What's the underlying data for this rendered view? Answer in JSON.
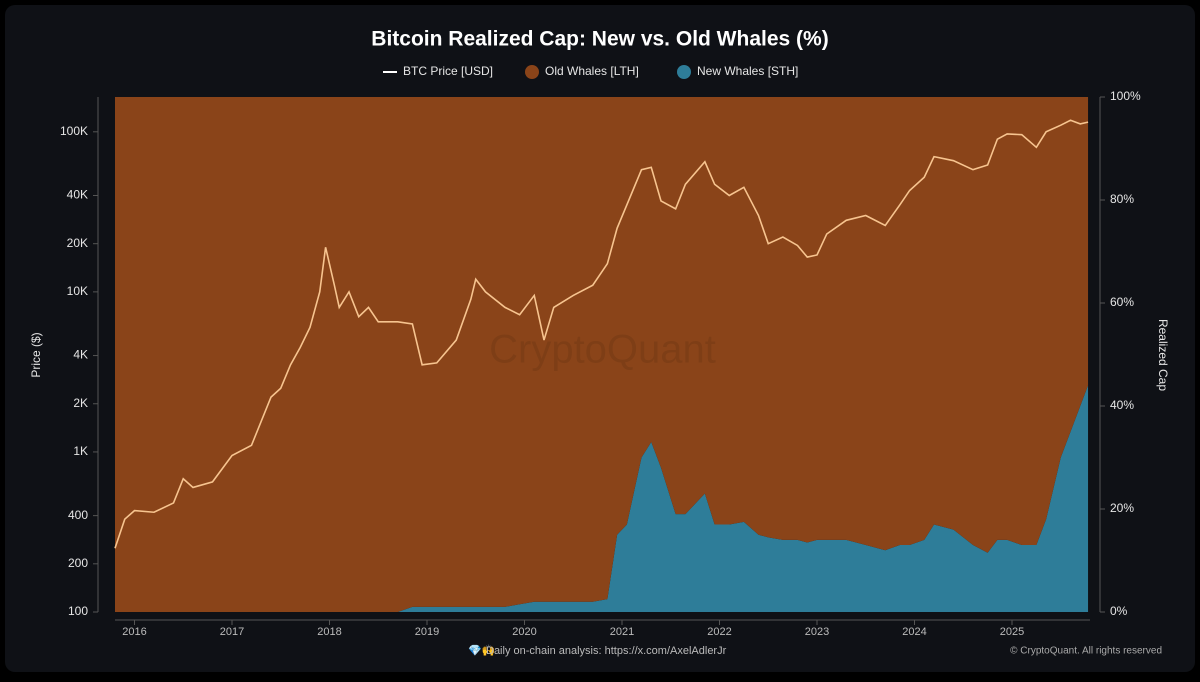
{
  "chart_data": {
    "type": "line-area",
    "title": "Bitcoin Realized Cap: New vs. Old Whales (%)",
    "ylabel": "Price ($)",
    "y2label": "Realized Cap",
    "watermark": "CryptoQuant",
    "footnote": "Daily on-chain analysis: https://x.com/AxelAdlerJr",
    "credit": "© CryptoQuant. All rights reserved",
    "yscale": "log",
    "legend": "top",
    "x": [
      2015.8,
      2015.9,
      2016.0,
      2016.2,
      2016.4,
      2016.5,
      2016.6,
      2016.8,
      2017.0,
      2017.2,
      2017.4,
      2017.5,
      2017.6,
      2017.7,
      2017.8,
      2017.9,
      2017.96,
      2018.05,
      2018.1,
      2018.2,
      2018.3,
      2018.4,
      2018.5,
      2018.7,
      2018.85,
      2018.95,
      2019.1,
      2019.3,
      2019.45,
      2019.5,
      2019.6,
      2019.8,
      2019.95,
      2020.1,
      2020.2,
      2020.3,
      2020.5,
      2020.7,
      2020.85,
      2020.95,
      2021.05,
      2021.2,
      2021.3,
      2021.4,
      2021.55,
      2021.65,
      2021.85,
      2021.95,
      2022.1,
      2022.25,
      2022.4,
      2022.5,
      2022.65,
      2022.8,
      2022.9,
      2023.0,
      2023.1,
      2023.3,
      2023.5,
      2023.7,
      2023.85,
      2023.95,
      2024.1,
      2024.2,
      2024.4,
      2024.6,
      2024.75,
      2024.85,
      2024.95,
      2025.1,
      2025.25,
      2025.35,
      2025.5,
      2025.6,
      2025.7,
      2025.78
    ],
    "xlim": [
      2015.8,
      2025.8
    ],
    "xticks": [
      2016,
      2017,
      2018,
      2019,
      2020,
      2021,
      2022,
      2023,
      2024,
      2025
    ],
    "ylim": [
      100,
      165000
    ],
    "yticks": [
      100,
      200,
      400,
      {
        "value": 1000,
        "label": "1K"
      },
      {
        "value": 2000,
        "label": "2K"
      },
      {
        "value": 4000,
        "label": "4K"
      },
      {
        "value": 10000,
        "label": "10K"
      },
      {
        "value": 20000,
        "label": "20K"
      },
      {
        "value": 40000,
        "label": "40K"
      },
      {
        "value": 100000,
        "label": "100K"
      }
    ],
    "y2lim": [
      0,
      100
    ],
    "y2ticks": [
      {
        "value": 0,
        "label": "0%"
      },
      {
        "value": 20,
        "label": "20%"
      },
      {
        "value": 40,
        "label": "40%"
      },
      {
        "value": 60,
        "label": "60%"
      },
      {
        "value": 80,
        "label": "80%"
      },
      {
        "value": 100,
        "label": "100%"
      }
    ],
    "series": [
      {
        "name": "BTC Price [USD]",
        "color": "#f7c48f",
        "kind": "line",
        "values": [
          250,
          380,
          430,
          420,
          480,
          680,
          600,
          650,
          950,
          1100,
          2200,
          2500,
          3500,
          4500,
          6000,
          10000,
          19000,
          11000,
          8000,
          10000,
          7000,
          8000,
          6500,
          6500,
          6300,
          3500,
          3600,
          5000,
          9000,
          12000,
          10000,
          8000,
          7200,
          9500,
          5000,
          8000,
          9500,
          11000,
          15000,
          25000,
          35000,
          58000,
          60000,
          37000,
          33000,
          47000,
          65000,
          47000,
          40000,
          45000,
          30000,
          20000,
          22000,
          19500,
          16500,
          17000,
          23000,
          28000,
          30000,
          26000,
          35000,
          43000,
          52000,
          70000,
          66000,
          58000,
          62000,
          90000,
          97000,
          96000,
          80000,
          100000,
          110000,
          118000,
          112000,
          115000
        ]
      },
      {
        "name": "Old Whales [LTH]",
        "color": "#8a4419",
        "kind": "area",
        "axis": "y2",
        "values": [
          100,
          100,
          100,
          100,
          100,
          100,
          100,
          100,
          100,
          100,
          100,
          100,
          100,
          100,
          100,
          100,
          100,
          100,
          100,
          100,
          100,
          100,
          100,
          100,
          99,
          99,
          99,
          99,
          99,
          99,
          99,
          99,
          98.5,
          98,
          98,
          98,
          98,
          98,
          97.5,
          85,
          83,
          70,
          67,
          72,
          81,
          81,
          77,
          83,
          83,
          82.5,
          85,
          85.5,
          86,
          86,
          86.5,
          86,
          86,
          86,
          87,
          88,
          87,
          87,
          86,
          83,
          84,
          87,
          88.5,
          86,
          86,
          87,
          87,
          82,
          70,
          65,
          60,
          56
        ]
      },
      {
        "name": "New Whales [STH]",
        "color": "#2e7d99",
        "kind": "area",
        "axis": "y2",
        "values": [
          0,
          0,
          0,
          0,
          0,
          0,
          0,
          0,
          0,
          0,
          0,
          0,
          0,
          0,
          0,
          0,
          0,
          0,
          0,
          0,
          0,
          0,
          0,
          0,
          1,
          1,
          1,
          1,
          1,
          1,
          1,
          1,
          1.5,
          2,
          2,
          2,
          2,
          2,
          2.5,
          15,
          17,
          30,
          33,
          28,
          19,
          19,
          23,
          17,
          17,
          17.5,
          15,
          14.5,
          14,
          14,
          13.5,
          14,
          14,
          14,
          13,
          12,
          13,
          13,
          14,
          17,
          16,
          13,
          11.5,
          14,
          14,
          13,
          13,
          18,
          30,
          35,
          40,
          44
        ]
      }
    ]
  }
}
